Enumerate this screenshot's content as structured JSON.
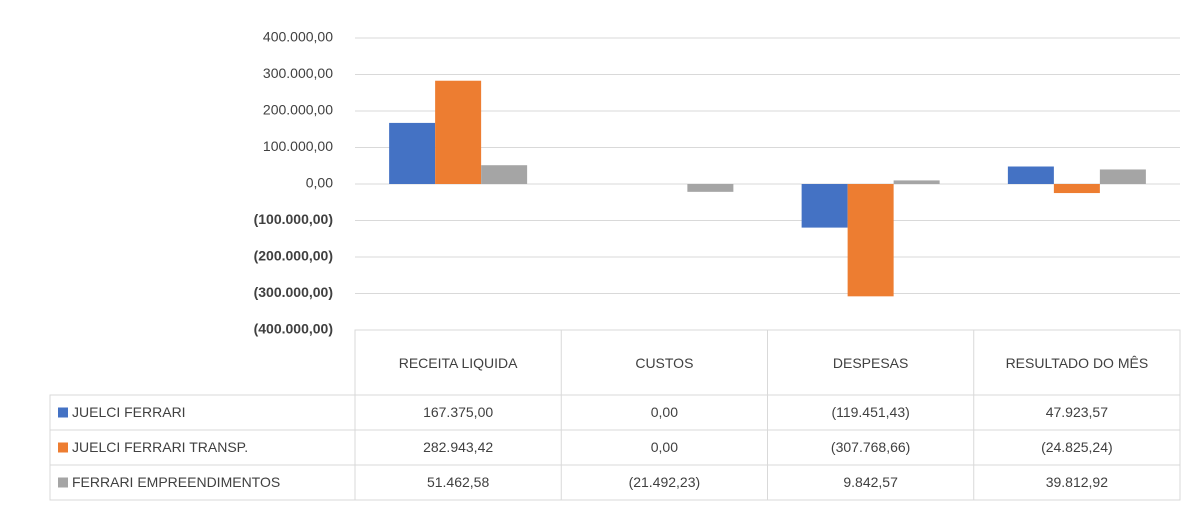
{
  "chart_data": {
    "type": "bar",
    "categories": [
      "RECEITA LIQUIDA",
      "CUSTOS",
      "DESPESAS",
      "RESULTADO DO MÊS"
    ],
    "series": [
      {
        "name": "JUELCI FERRARI",
        "color": "#4472c4",
        "values": [
          167375,
          0,
          -119451.43,
          47923.57
        ],
        "value_labels": [
          "167.375,00",
          "0,00",
          "(119.451,43)",
          "47.923,57"
        ]
      },
      {
        "name": "JUELCI FERRARI TRANSP.",
        "color": "#ed7d31",
        "values": [
          282943.42,
          0,
          -307768.66,
          -24825.24
        ],
        "value_labels": [
          "282.943,42",
          "0,00",
          "(307.768,66)",
          "(24.825,24)"
        ]
      },
      {
        "name": "FERRARI EMPREENDIMENTOS",
        "color": "#a5a5a5",
        "values": [
          51462.58,
          -21492.23,
          9842.57,
          39812.92
        ],
        "value_labels": [
          "51.462,58",
          "(21.492,23)",
          "9.842,57",
          "39.812,92"
        ]
      }
    ],
    "ylim": [
      -400000,
      400000
    ],
    "yticks": [
      {
        "value": 400000,
        "label": "400.000,00"
      },
      {
        "value": 300000,
        "label": "300.000,00"
      },
      {
        "value": 200000,
        "label": "200.000,00"
      },
      {
        "value": 100000,
        "label": "100.000,00"
      },
      {
        "value": 0,
        "label": "0,00"
      },
      {
        "value": -100000,
        "label": "(100.000,00)"
      },
      {
        "value": -200000,
        "label": "(200.000,00)"
      },
      {
        "value": -300000,
        "label": "(300.000,00)"
      },
      {
        "value": -400000,
        "label": "(400.000,00)"
      }
    ],
    "grid": true
  }
}
